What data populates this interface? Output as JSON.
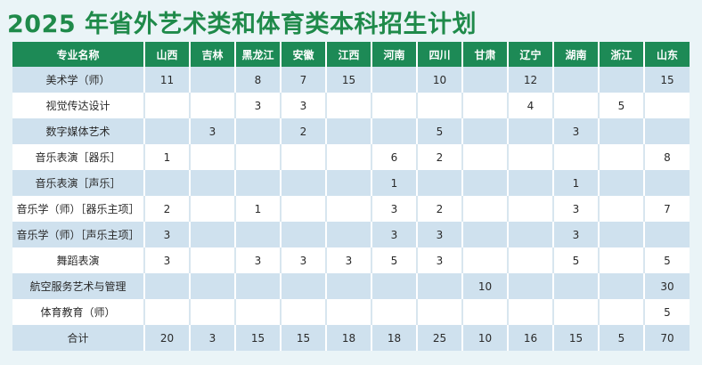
{
  "title": "2025 年省外艺术类和体育类本科招生计划",
  "table": {
    "headers": [
      "专业名称",
      "山西",
      "吉林",
      "黑龙江",
      "安徽",
      "江西",
      "河南",
      "四川",
      "甘肃",
      "辽宁",
      "湖南",
      "浙江",
      "山东"
    ],
    "rows": [
      [
        "美术学（师）",
        "11",
        "",
        "8",
        "7",
        "15",
        "",
        "10",
        "",
        "12",
        "",
        "",
        "15"
      ],
      [
        "视觉传达设计",
        "",
        "",
        "3",
        "3",
        "",
        "",
        "",
        "",
        "4",
        "",
        "5",
        ""
      ],
      [
        "数字媒体艺术",
        "",
        "3",
        "",
        "2",
        "",
        "",
        "5",
        "",
        "",
        "3",
        "",
        ""
      ],
      [
        "音乐表演［器乐］",
        "1",
        "",
        "",
        "",
        "",
        "6",
        "2",
        "",
        "",
        "",
        "",
        "8"
      ],
      [
        "音乐表演［声乐］",
        "",
        "",
        "",
        "",
        "",
        "1",
        "",
        "",
        "",
        "1",
        "",
        ""
      ],
      [
        "音乐学（师）［器乐主项］",
        "2",
        "",
        "1",
        "",
        "",
        "3",
        "2",
        "",
        "",
        "3",
        "",
        "7"
      ],
      [
        "音乐学（师）［声乐主项］",
        "3",
        "",
        "",
        "",
        "",
        "3",
        "3",
        "",
        "",
        "3",
        "",
        ""
      ],
      [
        "舞蹈表演",
        "3",
        "",
        "3",
        "3",
        "3",
        "5",
        "3",
        "",
        "",
        "5",
        "",
        "5"
      ],
      [
        "航空服务艺术与管理",
        "",
        "",
        "",
        "",
        "",
        "",
        "",
        "10",
        "",
        "",
        "",
        "30"
      ],
      [
        "体育教育（师）",
        "",
        "",
        "",
        "",
        "",
        "",
        "",
        "",
        "",
        "",
        "",
        "5"
      ],
      [
        "合计",
        "20",
        "3",
        "15",
        "15",
        "18",
        "18",
        "25",
        "10",
        "16",
        "15",
        "5",
        "70"
      ]
    ]
  }
}
